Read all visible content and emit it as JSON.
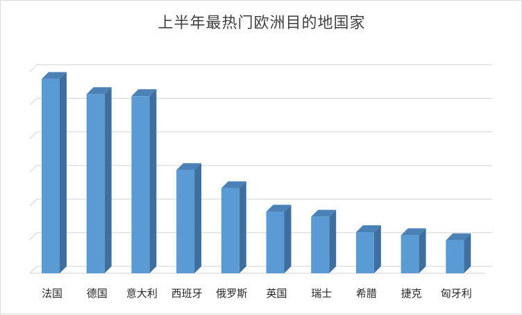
{
  "chart_data": {
    "type": "bar",
    "title": "上半年最热门欧洲目的地国家",
    "categories": [
      "法国",
      "德国",
      "意大利",
      "西班牙",
      "俄罗斯",
      "英国",
      "瑞士",
      "希腊",
      "捷克",
      "匈牙利"
    ],
    "values": [
      5.78,
      5.33,
      5.27,
      3.07,
      2.53,
      1.83,
      1.68,
      1.22,
      1.13,
      0.98
    ],
    "ylim": [
      0,
      6
    ],
    "grid": true,
    "legend": "none",
    "style": "3d-column",
    "colors": {
      "bar_front": "#5b9bd5",
      "bar_side": "#3e6f9e",
      "bar_top": "#4a82b8",
      "grid": "#d9d9d9"
    }
  }
}
